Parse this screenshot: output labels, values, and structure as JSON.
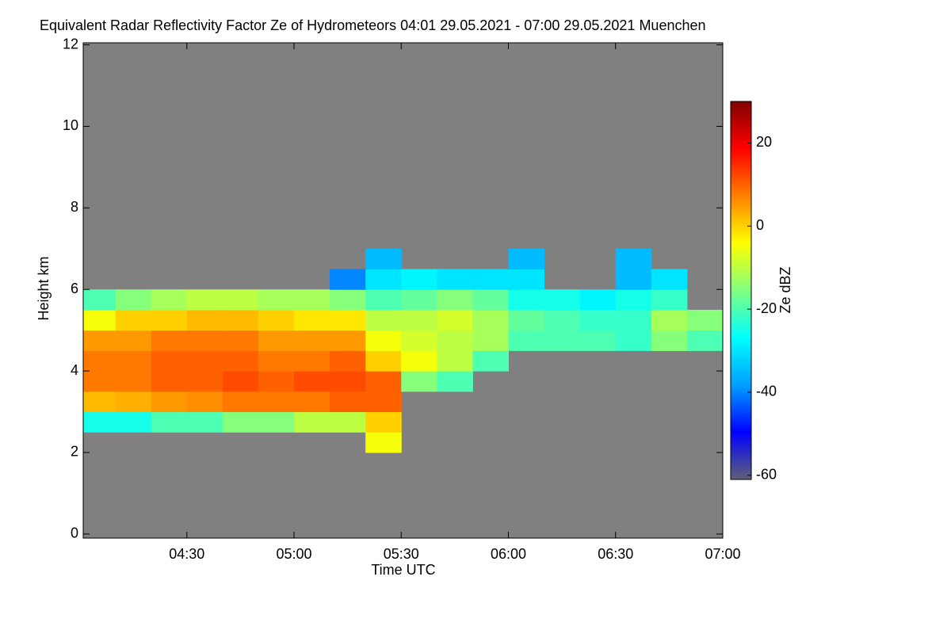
{
  "chart_data": {
    "type": "heatmap",
    "title": "Equivalent Radar Reflectivity Factor Ze of Hydrometeors   04:01 29.05.2021 - 07:00 29.05.2021 Muenchen",
    "x_label": "Time UTC",
    "y_label": "Height km",
    "colorbar_label": "Ze dBZ",
    "xlim": [
      241,
      420
    ],
    "xticks": [
      {
        "value": 270,
        "label": "04:30"
      },
      {
        "value": 300,
        "label": "05:00"
      },
      {
        "value": 330,
        "label": "05:30"
      },
      {
        "value": 360,
        "label": "06:00"
      },
      {
        "value": 390,
        "label": "06:30"
      },
      {
        "value": 420,
        "label": "07:00"
      }
    ],
    "ylim": [
      -0.1,
      12.05
    ],
    "yticks": [
      0,
      2,
      4,
      6,
      8,
      10,
      12
    ],
    "clim": [
      -61,
      30
    ],
    "cticks": [
      -60,
      -40,
      -20,
      0,
      20
    ],
    "background": "#808080",
    "colormap": [
      "#606078",
      "#0000ff",
      "#00a0ff",
      "#00ffff",
      "#80ff80",
      "#ffff00",
      "#ff8000",
      "#ff0000",
      "#800000"
    ],
    "x_edges": [
      241,
      250,
      260,
      270,
      280,
      290,
      300,
      310,
      320,
      330,
      340,
      350,
      360,
      370,
      380,
      390,
      400,
      410,
      420
    ],
    "y_edges": [
      2.0,
      2.5,
      3.0,
      3.5,
      4.0,
      4.5,
      5.0,
      5.5,
      6.0,
      6.5,
      7.0
    ],
    "z": [
      [
        null,
        null,
        null,
        null,
        null,
        null,
        null,
        null,
        -5,
        null,
        null,
        null,
        null,
        null,
        null,
        null,
        null,
        null
      ],
      [
        -25,
        -25,
        -20,
        -20,
        -15,
        -15,
        -10,
        -10,
        0,
        null,
        null,
        null,
        null,
        null,
        null,
        null,
        null,
        null
      ],
      [
        2,
        3,
        5,
        6,
        8,
        8,
        8,
        10,
        10,
        null,
        null,
        null,
        null,
        null,
        null,
        null,
        null,
        null
      ],
      [
        8,
        8,
        10,
        10,
        12,
        10,
        12,
        12,
        10,
        -15,
        -20,
        null,
        null,
        null,
        null,
        null,
        null,
        null
      ],
      [
        8,
        8,
        10,
        10,
        10,
        8,
        8,
        10,
        0,
        -5,
        -10,
        -20,
        null,
        null,
        null,
        null,
        null,
        null
      ],
      [
        5,
        5,
        8,
        8,
        8,
        5,
        5,
        5,
        -5,
        -8,
        -10,
        -12,
        -20,
        -20,
        -20,
        -22,
        -15,
        -20
      ],
      [
        -5,
        0,
        0,
        2,
        2,
        0,
        -2,
        -2,
        -10,
        -10,
        -8,
        -12,
        -18,
        -20,
        -22,
        -22,
        -12,
        -15
      ],
      [
        -20,
        -15,
        -12,
        -10,
        -10,
        -12,
        -12,
        -15,
        -20,
        -18,
        -15,
        -18,
        -25,
        -25,
        -28,
        -25,
        -22,
        null
      ],
      [
        null,
        null,
        null,
        null,
        null,
        null,
        null,
        -40,
        -30,
        -28,
        -30,
        -30,
        -30,
        null,
        null,
        -35,
        -30,
        null
      ],
      [
        null,
        null,
        null,
        null,
        null,
        null,
        null,
        null,
        -35,
        null,
        null,
        null,
        -35,
        null,
        null,
        -35,
        null,
        null
      ]
    ]
  }
}
